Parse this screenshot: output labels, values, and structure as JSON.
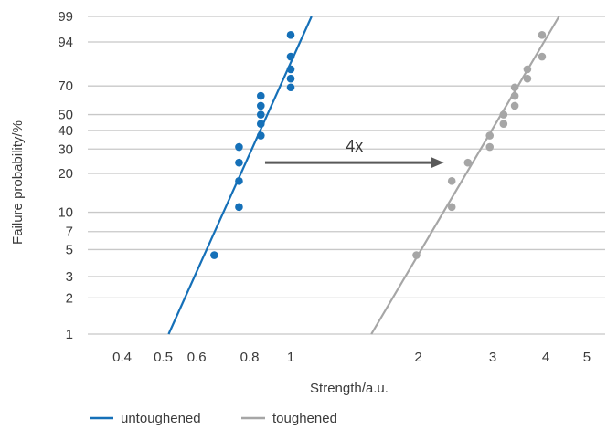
{
  "chart_data": {
    "type": "scatter",
    "title": "",
    "xlabel": "Strength/a.u.",
    "ylabel": "Failure probability/%",
    "xscale": "log",
    "yscale": "weibull-probability",
    "xlim": [
      0.3,
      5.8
    ],
    "ylim": [
      1,
      99
    ],
    "grid": "horizontal",
    "legend_position": "bottom-left",
    "x_ticks": [
      {
        "value": 0.4,
        "label": "0.4"
      },
      {
        "value": 0.5,
        "label": "0.5"
      },
      {
        "value": 0.6,
        "label": "0.6"
      },
      {
        "value": 0.8,
        "label": "0.8"
      },
      {
        "value": 1,
        "label": "1"
      },
      {
        "value": 2,
        "label": "2"
      },
      {
        "value": 3,
        "label": "3"
      },
      {
        "value": 4,
        "label": "4"
      },
      {
        "value": 5,
        "label": "5"
      }
    ],
    "y_ticks": [
      {
        "value": 1,
        "label": "1"
      },
      {
        "value": 2,
        "label": "2"
      },
      {
        "value": 3,
        "label": "3"
      },
      {
        "value": 5,
        "label": "5"
      },
      {
        "value": 7,
        "label": "7"
      },
      {
        "value": 10,
        "label": "10"
      },
      {
        "value": 20,
        "label": "20"
      },
      {
        "value": 30,
        "label": "30"
      },
      {
        "value": 40,
        "label": "40"
      },
      {
        "value": 50,
        "label": "50"
      },
      {
        "value": 70,
        "label": "70"
      },
      {
        "value": 94,
        "label": "94"
      },
      {
        "value": 99,
        "label": "99"
      }
    ],
    "series": [
      {
        "name": "untoughened",
        "color": "#1570b8",
        "points": [
          {
            "x": 0.66,
            "y": 4.5
          },
          {
            "x": 0.755,
            "y": 11
          },
          {
            "x": 0.755,
            "y": 17.5
          },
          {
            "x": 0.755,
            "y": 24
          },
          {
            "x": 0.755,
            "y": 31
          },
          {
            "x": 0.85,
            "y": 37
          },
          {
            "x": 0.85,
            "y": 44
          },
          {
            "x": 0.85,
            "y": 50
          },
          {
            "x": 0.85,
            "y": 56
          },
          {
            "x": 0.85,
            "y": 63
          },
          {
            "x": 1.0,
            "y": 69
          },
          {
            "x": 1.0,
            "y": 75
          },
          {
            "x": 1.0,
            "y": 81
          },
          {
            "x": 1.0,
            "y": 88
          },
          {
            "x": 1.0,
            "y": 96
          }
        ],
        "fit_line": [
          {
            "x": 0.515,
            "y": 1
          },
          {
            "x": 1.12,
            "y": 99
          }
        ]
      },
      {
        "name": "toughened",
        "color": "#a6a6a6",
        "points": [
          {
            "x": 1.98,
            "y": 4.5
          },
          {
            "x": 2.4,
            "y": 11
          },
          {
            "x": 2.4,
            "y": 17.5
          },
          {
            "x": 2.62,
            "y": 24
          },
          {
            "x": 2.95,
            "y": 31
          },
          {
            "x": 2.95,
            "y": 37
          },
          {
            "x": 3.18,
            "y": 44
          },
          {
            "x": 3.18,
            "y": 50
          },
          {
            "x": 3.38,
            "y": 56
          },
          {
            "x": 3.38,
            "y": 63
          },
          {
            "x": 3.38,
            "y": 69
          },
          {
            "x": 3.62,
            "y": 75
          },
          {
            "x": 3.62,
            "y": 81
          },
          {
            "x": 3.92,
            "y": 88
          },
          {
            "x": 3.92,
            "y": 96
          }
        ],
        "fit_line": [
          {
            "x": 1.55,
            "y": 1
          },
          {
            "x": 4.3,
            "y": 99
          }
        ]
      }
    ],
    "annotations": [
      {
        "text": "4x",
        "arrow_from": {
          "x": 0.87,
          "y": 24
        },
        "arrow_to": {
          "x": 2.3,
          "y": 24
        }
      }
    ],
    "colors": {
      "grid": "#c8c8c8",
      "text": "#3a3a3a",
      "arrow": "#595959"
    }
  }
}
